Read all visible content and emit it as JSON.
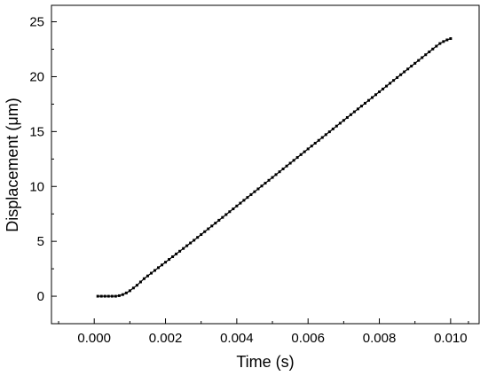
{
  "chart_data": {
    "type": "scatter",
    "title": "",
    "xlabel": "Time (s)",
    "ylabel": "Displacement (μm)",
    "xlim": [
      -0.0012,
      0.0108
    ],
    "ylim": [
      -2.5,
      26.5
    ],
    "x_ticks": [
      0.0,
      0.002,
      0.004,
      0.006,
      0.008,
      0.01
    ],
    "x_tick_labels": [
      "0.000",
      "0.002",
      "0.004",
      "0.006",
      "0.008",
      "0.010"
    ],
    "y_ticks": [
      0,
      5,
      10,
      15,
      20,
      25
    ],
    "y_tick_labels": [
      "0",
      "5",
      "10",
      "15",
      "20",
      "25"
    ],
    "grid": false,
    "legend": "none",
    "series": [
      {
        "color": "#000000",
        "marker": "square",
        "x_start": 0.0001,
        "x_step": 0.0001,
        "count": 100,
        "values": [
          0,
          0,
          0,
          0,
          0,
          0,
          0.05,
          0.15,
          0.3,
          0.5,
          0.75,
          1.0,
          1.3,
          1.6,
          1.85,
          2.1,
          2.35,
          2.6,
          2.85,
          3.1,
          3.35,
          3.6,
          3.85,
          4.1,
          4.35,
          4.6,
          4.85,
          5.1,
          5.36,
          5.62,
          5.88,
          6.14,
          6.4,
          6.66,
          6.92,
          7.18,
          7.44,
          7.7,
          7.96,
          8.22,
          8.48,
          8.74,
          9.0,
          9.26,
          9.52,
          9.78,
          10.04,
          10.3,
          10.56,
          10.82,
          11.08,
          11.34,
          11.6,
          11.86,
          12.12,
          12.38,
          12.64,
          12.9,
          13.16,
          13.42,
          13.68,
          13.94,
          14.2,
          14.46,
          14.72,
          14.98,
          15.24,
          15.5,
          15.76,
          16.02,
          16.28,
          16.54,
          16.8,
          17.06,
          17.32,
          17.58,
          17.84,
          18.1,
          18.36,
          18.62,
          18.88,
          19.14,
          19.4,
          19.66,
          19.92,
          20.18,
          20.44,
          20.7,
          20.96,
          21.22,
          21.48,
          21.74,
          22.0,
          22.26,
          22.52,
          22.78,
          23.02,
          23.2,
          23.35,
          23.47
        ]
      }
    ]
  }
}
